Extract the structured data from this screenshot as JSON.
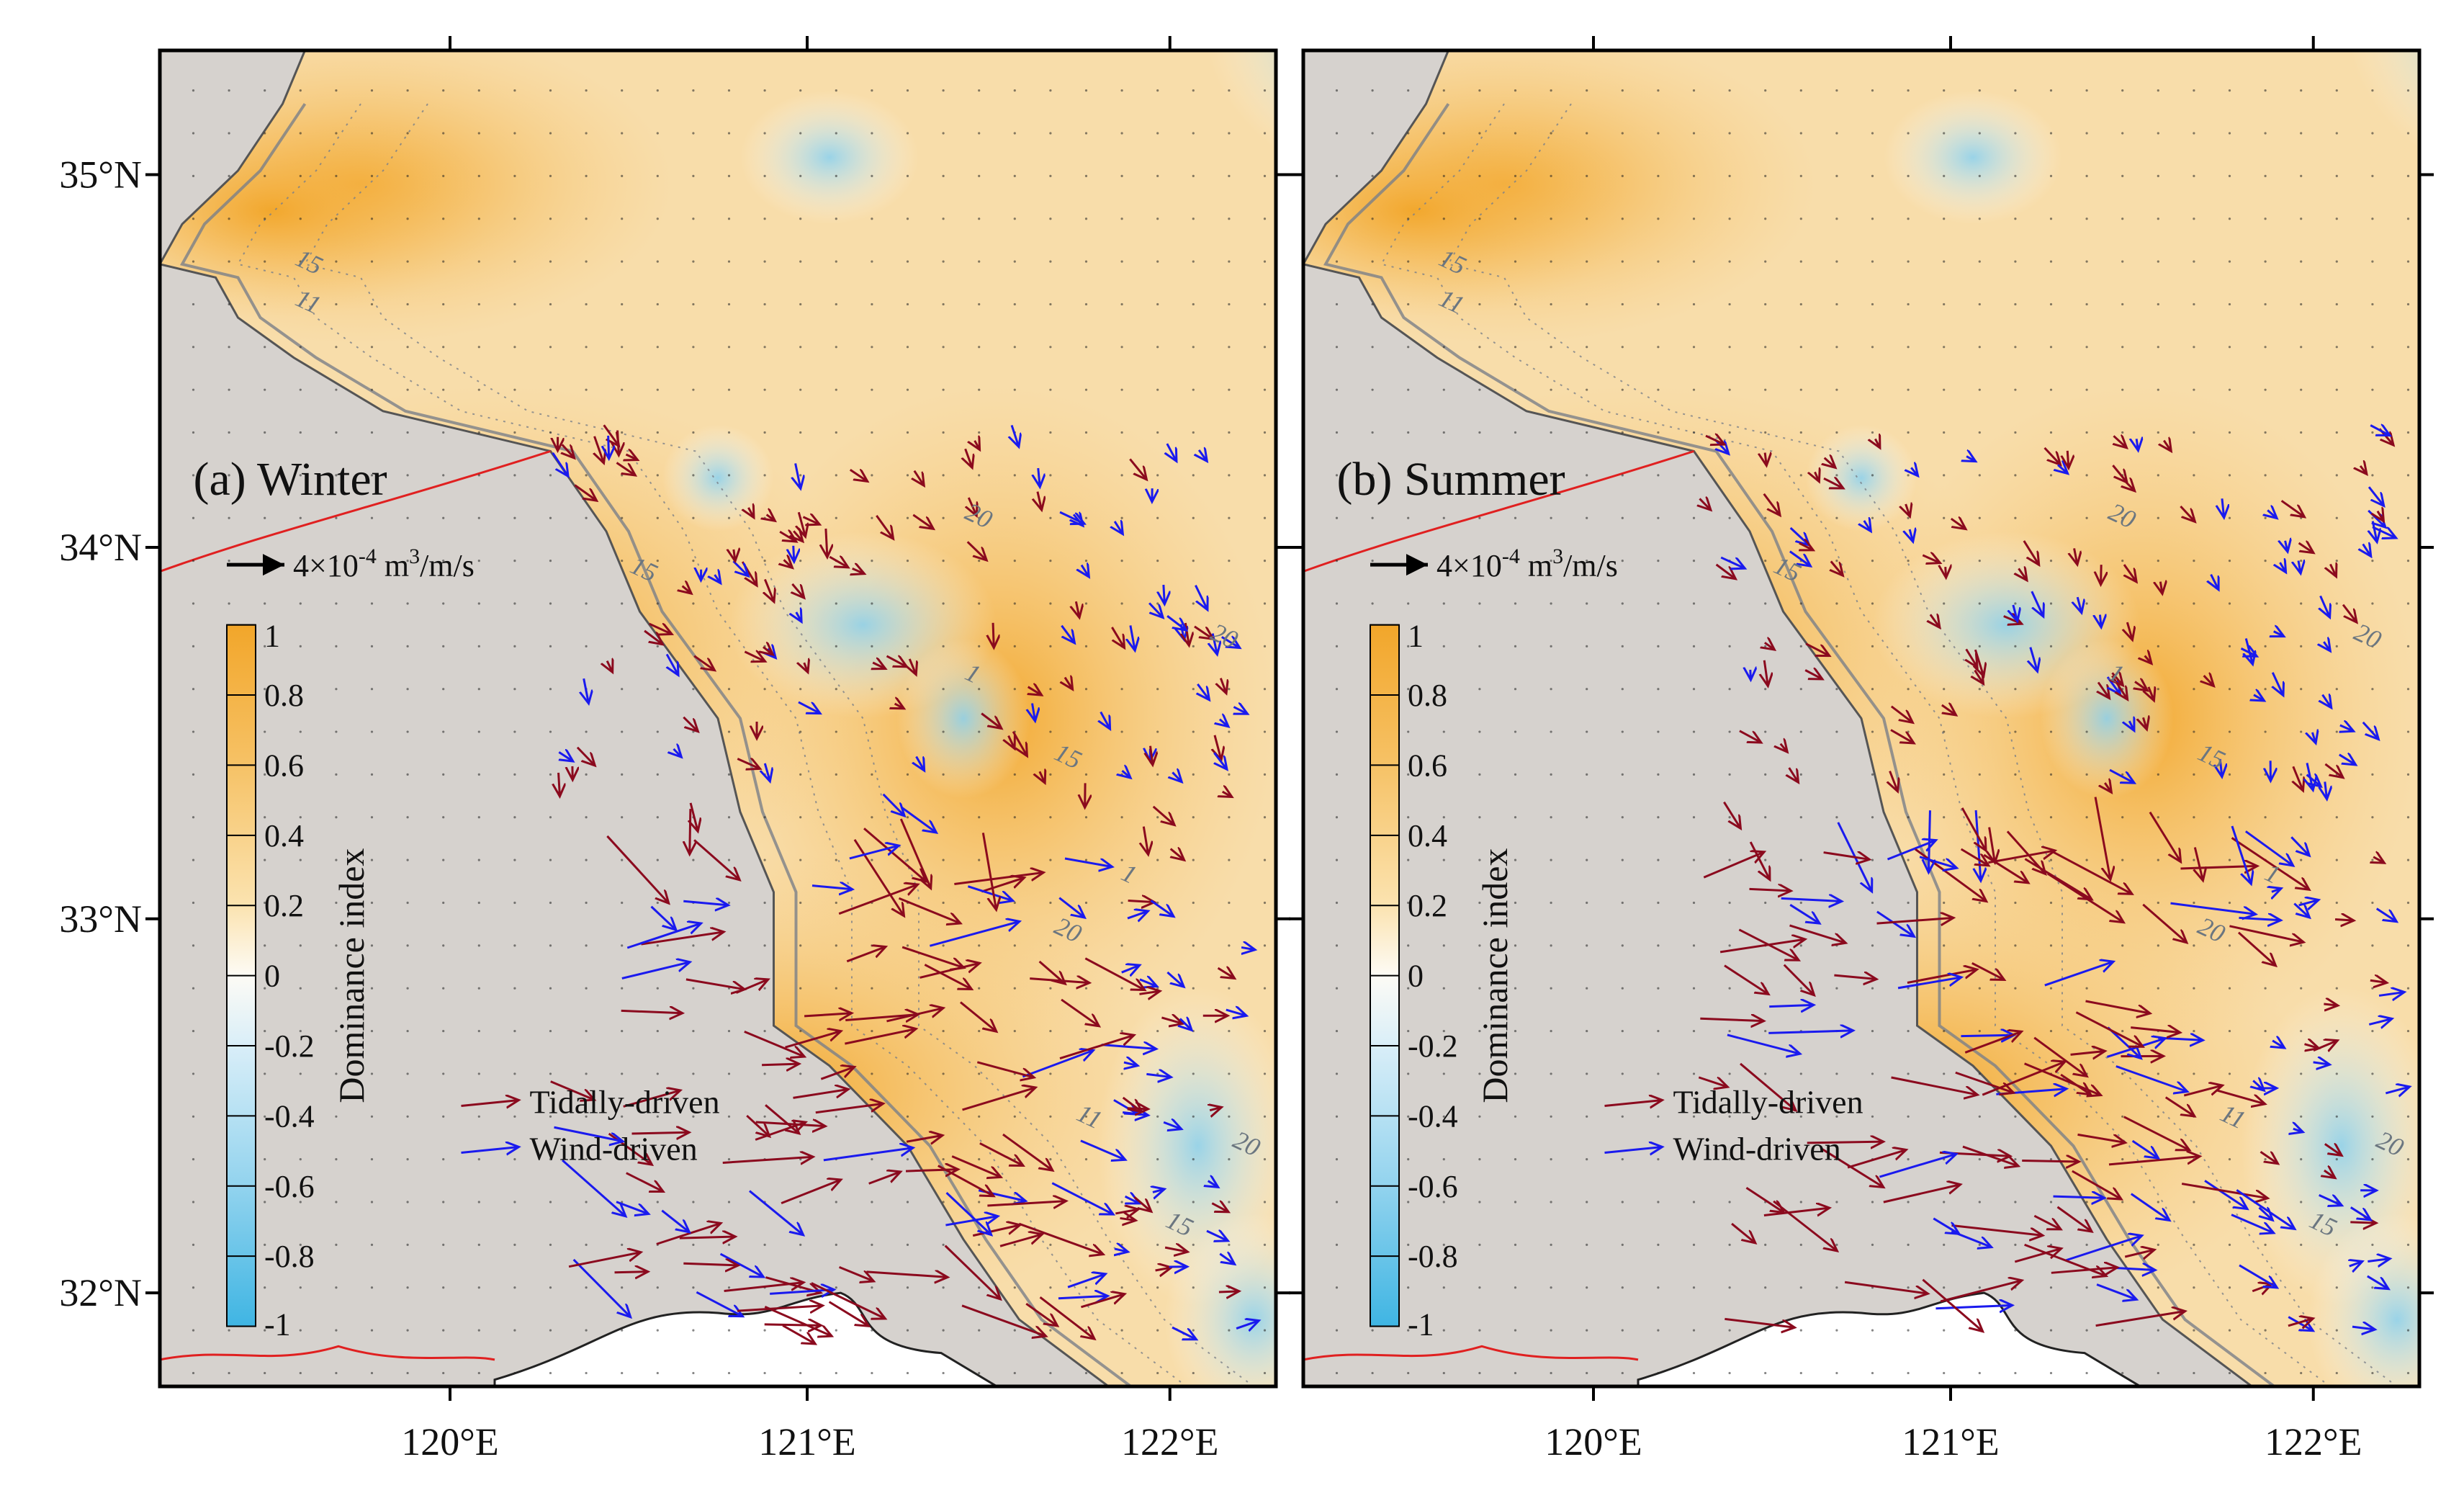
{
  "figure": {
    "colorbar_title": "Dominance index",
    "colorbar_ticks": [
      "1",
      "0.8",
      "0.6",
      "0.4",
      "0.2",
      "0",
      "-0.2",
      "-0.4",
      "-0.6",
      "-0.8",
      "-1"
    ],
    "colorbar_values": [
      1,
      0.8,
      0.6,
      0.4,
      0.2,
      0,
      -0.2,
      -0.4,
      -0.6,
      -0.8,
      -1
    ],
    "scale_prefix": "4×10",
    "scale_exp": "-4",
    "scale_mid": " m",
    "scale_exp2": "3",
    "scale_suffix": "/m/s",
    "legend": [
      {
        "label": "Tidally-driven",
        "color": "#8b0a1e"
      },
      {
        "label": "Wind-driven",
        "color": "#1a1aee"
      }
    ],
    "x_ticks": [
      "120°E",
      "121°E",
      "122°E"
    ],
    "y_ticks": [
      "35°N",
      "34°N",
      "33°N",
      "32°N"
    ],
    "contour_labels": [
      "15",
      "11",
      "15",
      "20",
      "20",
      "1",
      "15",
      "20",
      "1",
      "11",
      "20",
      "15"
    ],
    "colors": {
      "land": "#d6d2ce",
      "positive_max": "#f2a62a",
      "neutral": "#fbf6ea",
      "negative_max": "#3fb5e3",
      "tidal": "#8b0a1e",
      "wind": "#1a1aee",
      "boundary": "#e02020"
    }
  },
  "panels": [
    {
      "id": "winter",
      "title": "(a) Winter"
    },
    {
      "id": "summer",
      "title": "(b) Summer"
    }
  ]
}
